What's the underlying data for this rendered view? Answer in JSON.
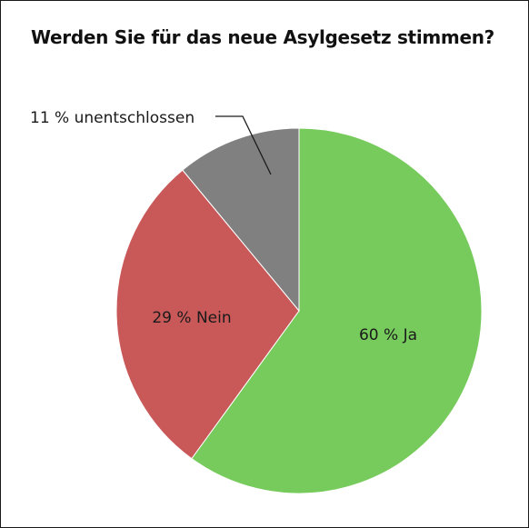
{
  "chart_data": {
    "type": "pie",
    "title": "Werden Sie für das neue Asylgesetz stimmen?",
    "slices": [
      {
        "label": "60 % Ja",
        "category": "Ja",
        "value": 60,
        "color": "#77cb5c"
      },
      {
        "label": "29 % Nein",
        "category": "Nein",
        "value": 29,
        "color": "#c95959"
      },
      {
        "label": "11 % unentschlossen",
        "category": "unentschlossen",
        "value": 11,
        "color": "#808080"
      }
    ],
    "start": "12 o'clock",
    "direction": "clockwise"
  }
}
